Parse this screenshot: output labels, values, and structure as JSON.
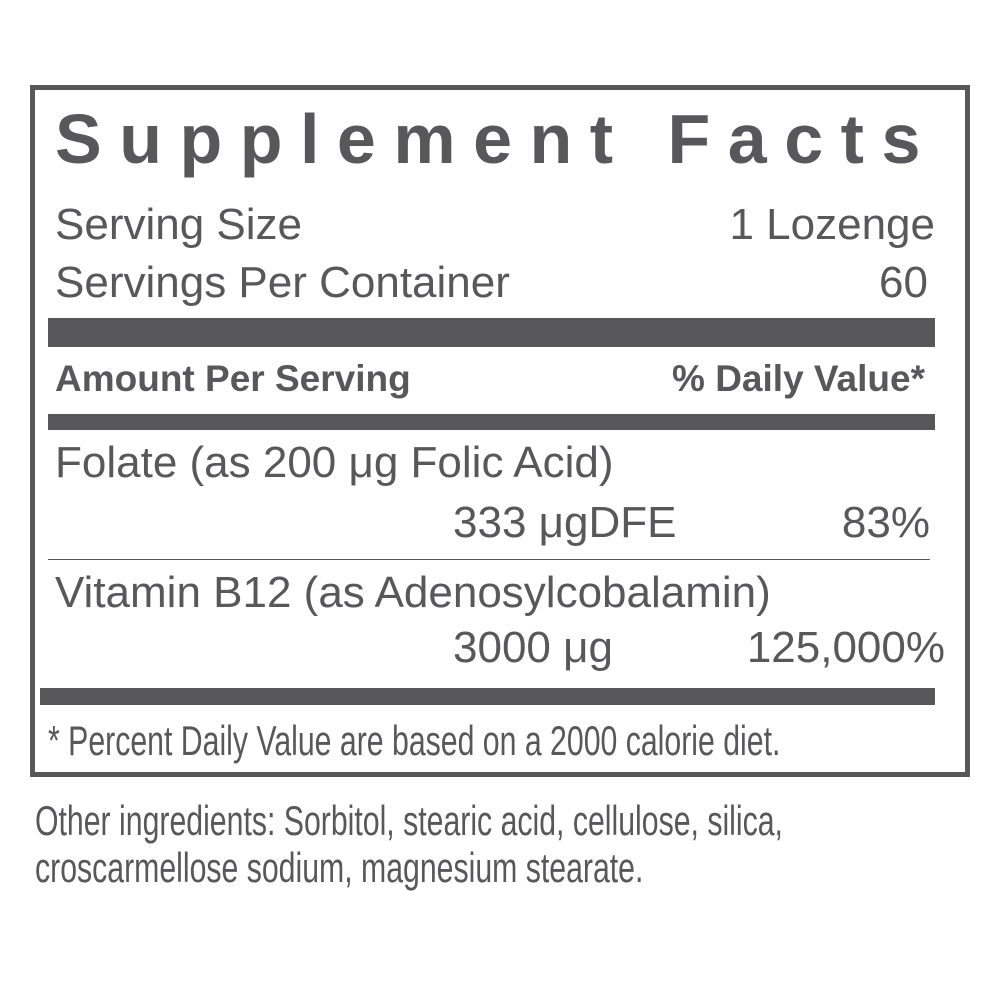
{
  "label": {
    "title": "Supplement Facts",
    "serving_size_label": "Serving Size",
    "serving_size_value": "1 Lozenge",
    "servings_per_container_label": "Servings Per Container",
    "servings_per_container_value": "60",
    "amount_header": "Amount Per Serving",
    "dv_header": "% Daily Value*",
    "nutrients": [
      {
        "name": "Folate (as 200 μg Folic Acid)",
        "amount": "333 μgDFE",
        "dv": "83%"
      },
      {
        "name": "Vitamin B12 (as Adenosylcobalamin)",
        "amount": "3000 μg",
        "dv": "125,000%"
      }
    ],
    "footnote": "* Percent Daily Value are based on a 2000 calorie diet."
  },
  "other_ingredients": {
    "line1": "Other ingredients: Sorbitol, stearic acid, cellulose, silica,",
    "line2": "croscarmellose sodium, magnesium stearate."
  },
  "colors": {
    "ink": "#58585a"
  }
}
